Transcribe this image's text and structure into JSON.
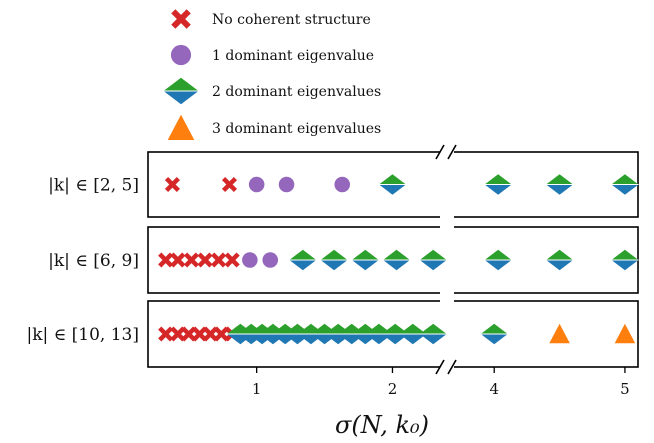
{
  "chart_data": {
    "type": "scatter",
    "xlabel": "σ(N, k₀)",
    "colors": {
      "red": "#d62728",
      "purple": "#9467bd",
      "green": "#2ca02c",
      "blue": "#1f77b4",
      "orange": "#ff7f0e"
    },
    "legend": [
      {
        "key": "none",
        "marker": "x",
        "label": "No coherent structure"
      },
      {
        "key": "one",
        "marker": "circle",
        "label": "1 dominant eigenvalue"
      },
      {
        "key": "two",
        "marker": "diamond",
        "label": "2 dominant eigenvalues"
      },
      {
        "key": "three",
        "marker": "triangle",
        "label": "3 dominant eigenvalues"
      }
    ],
    "x_breaks": [
      {
        "range": [
          0.2,
          2.35
        ],
        "ticks": [
          1,
          2
        ]
      },
      {
        "range": [
          3.7,
          5.1
        ],
        "ticks": [
          4,
          5
        ]
      }
    ],
    "rows": [
      {
        "label": "|k| ∈ [2, 5]",
        "points": [
          {
            "x": 0.38,
            "class": "none"
          },
          {
            "x": 0.8,
            "class": "none"
          },
          {
            "x": 1.0,
            "class": "one"
          },
          {
            "x": 1.22,
            "class": "one"
          },
          {
            "x": 1.63,
            "class": "one"
          },
          {
            "x": 2.0,
            "class": "two"
          },
          {
            "x": 4.03,
            "class": "two"
          },
          {
            "x": 4.5,
            "class": "two"
          },
          {
            "x": 5.0,
            "class": "two"
          }
        ]
      },
      {
        "label": "|k| ∈ [6, 9]",
        "points": [
          {
            "x": 0.33,
            "class": "none"
          },
          {
            "x": 0.42,
            "class": "none"
          },
          {
            "x": 0.52,
            "class": "none"
          },
          {
            "x": 0.62,
            "class": "none"
          },
          {
            "x": 0.72,
            "class": "none"
          },
          {
            "x": 0.82,
            "class": "none"
          },
          {
            "x": 0.95,
            "class": "one"
          },
          {
            "x": 1.1,
            "class": "one"
          },
          {
            "x": 1.34,
            "class": "two"
          },
          {
            "x": 1.57,
            "class": "two"
          },
          {
            "x": 1.8,
            "class": "two"
          },
          {
            "x": 2.03,
            "class": "two"
          },
          {
            "x": 2.3,
            "class": "two"
          },
          {
            "x": 4.03,
            "class": "two"
          },
          {
            "x": 4.5,
            "class": "two"
          },
          {
            "x": 5.0,
            "class": "two"
          }
        ]
      },
      {
        "label": "|k| ∈ [10, 13]",
        "points": [
          {
            "x": 0.33,
            "class": "none"
          },
          {
            "x": 0.42,
            "class": "none"
          },
          {
            "x": 0.5,
            "class": "none"
          },
          {
            "x": 0.58,
            "class": "none"
          },
          {
            "x": 0.66,
            "class": "none"
          },
          {
            "x": 0.74,
            "class": "none"
          },
          {
            "x": 0.82,
            "class": "none"
          },
          {
            "x": 0.88,
            "class": "two"
          },
          {
            "x": 0.96,
            "class": "two"
          },
          {
            "x": 1.04,
            "class": "two"
          },
          {
            "x": 1.12,
            "class": "two"
          },
          {
            "x": 1.21,
            "class": "two"
          },
          {
            "x": 1.3,
            "class": "two"
          },
          {
            "x": 1.4,
            "class": "two"
          },
          {
            "x": 1.5,
            "class": "two"
          },
          {
            "x": 1.6,
            "class": "two"
          },
          {
            "x": 1.7,
            "class": "two"
          },
          {
            "x": 1.8,
            "class": "two"
          },
          {
            "x": 1.9,
            "class": "two"
          },
          {
            "x": 2.02,
            "class": "two"
          },
          {
            "x": 2.15,
            "class": "two"
          },
          {
            "x": 2.3,
            "class": "two"
          },
          {
            "x": 4.0,
            "class": "two"
          },
          {
            "x": 4.5,
            "class": "three"
          },
          {
            "x": 5.0,
            "class": "three"
          }
        ]
      }
    ]
  }
}
